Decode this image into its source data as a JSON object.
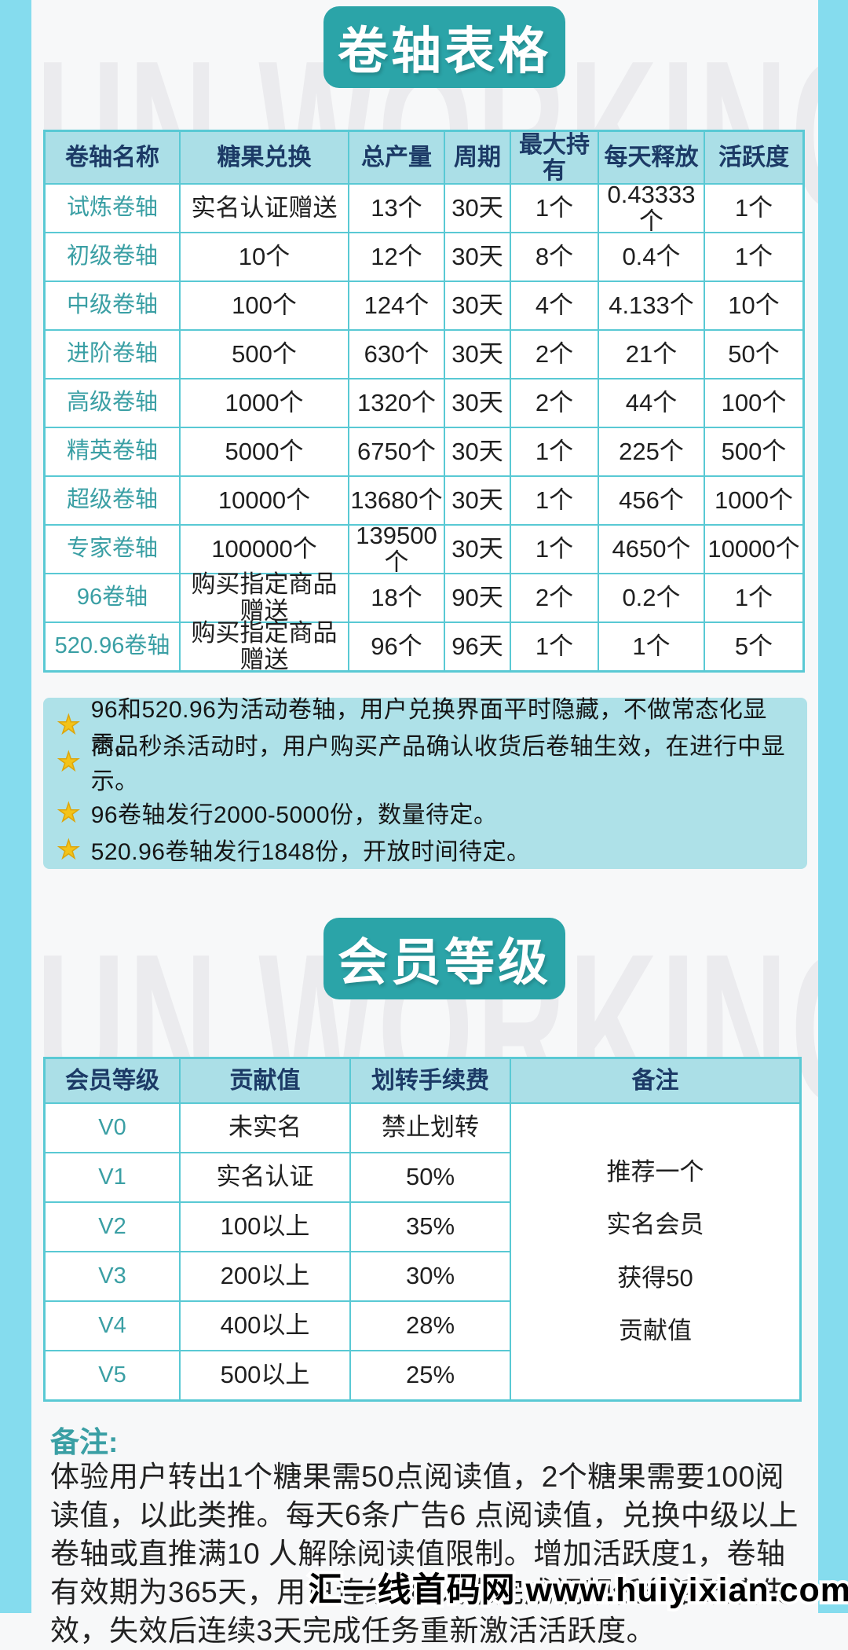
{
  "background_watermark": "FUN WORKING",
  "colors": {
    "frame": "#85dcee",
    "title_button": "#2ba4a8",
    "table_header_bg": "#abdfe7",
    "table_header_text": "#1c3a66",
    "grid_line": "#59c9d4",
    "accent_teal_text": "#3a9fa4",
    "note_panel_bg": "#aee1e8",
    "star": "#f3c318"
  },
  "section1": {
    "title": "卷轴表格",
    "table": {
      "headers": [
        "卷轴名称",
        "糖果兑换",
        "总产量",
        "周期",
        "最大持有",
        "每天释放",
        "活跃度"
      ],
      "rows": [
        [
          "试炼卷轴",
          "实名认证赠送",
          "13个",
          "30天",
          "1个",
          "0.43333个",
          "1个"
        ],
        [
          "初级卷轴",
          "10个",
          "12个",
          "30天",
          "8个",
          "0.4个",
          "1个"
        ],
        [
          "中级卷轴",
          "100个",
          "124个",
          "30天",
          "4个",
          "4.133个",
          "10个"
        ],
        [
          "进阶卷轴",
          "500个",
          "630个",
          "30天",
          "2个",
          "21个",
          "50个"
        ],
        [
          "高级卷轴",
          "1000个",
          "1320个",
          "30天",
          "2个",
          "44个",
          "100个"
        ],
        [
          "精英卷轴",
          "5000个",
          "6750个",
          "30天",
          "1个",
          "225个",
          "500个"
        ],
        [
          "超级卷轴",
          "10000个",
          "13680个",
          "30天",
          "1个",
          "456个",
          "1000个"
        ],
        [
          "专家卷轴",
          "100000个",
          "139500个",
          "30天",
          "1个",
          "4650个",
          "10000个"
        ],
        [
          "96卷轴",
          "购买指定商品赠送",
          "18个",
          "90天",
          "2个",
          "0.2个",
          "1个"
        ],
        [
          "520.96卷轴",
          "购买指定商品赠送",
          "96个",
          "96天",
          "1个",
          "1个",
          "5个"
        ]
      ]
    },
    "star_bullet": "★",
    "notes_group1": [
      "96和520.96为活动卷轴，用户兑换界面平时隐藏，不做常态化显示。",
      "商品秒杀活动时，用户购买产品确认收货后卷轴生效，在进行中显示。"
    ],
    "notes_group2": [
      "96卷轴发行2000-5000份，数量待定。",
      "520.96卷轴发行1848份，开放时间待定。"
    ]
  },
  "section2": {
    "title": "会员等级",
    "table": {
      "headers": [
        "会员等级",
        "贡献值",
        "划转手续费",
        "备注"
      ],
      "rows": [
        [
          "V0",
          "未实名",
          "禁止划转"
        ],
        [
          "V1",
          "实名认证",
          "50%"
        ],
        [
          "V2",
          "100以上",
          "35%"
        ],
        [
          "V3",
          "200以上",
          "30%"
        ],
        [
          "V4",
          "400以上",
          "28%"
        ],
        [
          "V5",
          "500以上",
          "25%"
        ]
      ],
      "remark_lines": [
        "推荐一个",
        "实名会员",
        "获得50",
        "贡献值"
      ]
    }
  },
  "footer": {
    "remark_label": "备注:",
    "remark_text": "体验用户转出1个糖果需50点阅读值，2个糖果需要100阅读值，以此类推。每天6条广告6 点阅读值，兑换中级以上卷轴或直推满10 人解除阅读值限制。增加活跃度1，卷轴有效期为365天，用户连续10 天未完成视频任务活跃度失效，失效后连续3天完成任务重新激活活跃度。",
    "site_watermark": "汇一线首码网 www.huiyixian.com"
  }
}
